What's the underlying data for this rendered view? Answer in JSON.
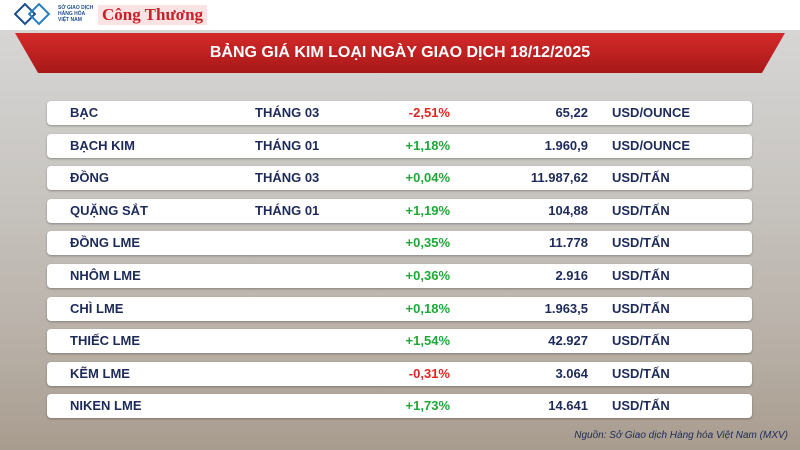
{
  "header": {
    "exchange_lines": [
      "SỞ GIAO DỊCH",
      "HÀNG HÓA",
      "VIỆT NAM"
    ],
    "brand": "Công Thương",
    "title": "BẢNG GIÁ KIM LOẠI NGÀY GIAO DỊCH 18/12/2025"
  },
  "table": {
    "rows": [
      {
        "name": "BẠC",
        "month": "THÁNG 03",
        "change": "-2,51%",
        "price": "65,22",
        "unit": "USD/OUNCE"
      },
      {
        "name": "BẠCH KIM",
        "month": "THÁNG 01",
        "change": "+1,18%",
        "price": "1.960,9",
        "unit": "USD/OUNCE"
      },
      {
        "name": "ĐỒNG",
        "month": "THÁNG 03",
        "change": "+0,04%",
        "price": "11.987,62",
        "unit": "USD/TẤN"
      },
      {
        "name": "QUẶNG SẮT",
        "month": "THÁNG 01",
        "change": "+1,19%",
        "price": "104,88",
        "unit": "USD/TẤN"
      },
      {
        "name": "ĐỒNG LME",
        "change": "+0,35%",
        "price": "11.778",
        "unit": "USD/TẤN"
      },
      {
        "name": "NHÔM LME",
        "change": "+0,36%",
        "price": "2.916",
        "unit": "USD/TẤN"
      },
      {
        "name": "CHÌ LME",
        "change": "+0,18%",
        "price": "1.963,5",
        "unit": "USD/TẤN"
      },
      {
        "name": "THIẾC LME",
        "change": "+1,54%",
        "price": "42.927",
        "unit": "USD/TẤN"
      },
      {
        "name": "KẼM LME",
        "change": "-0,31%",
        "price": "3.064",
        "unit": "USD/TẤN"
      },
      {
        "name": "NIKEN LME",
        "change": "+1,73%",
        "price": "14.641",
        "unit": "USD/TẤN"
      }
    ]
  },
  "source": "Nguồn: Sở Giao dịch Hàng hóa Việt Nam (MXV)"
}
